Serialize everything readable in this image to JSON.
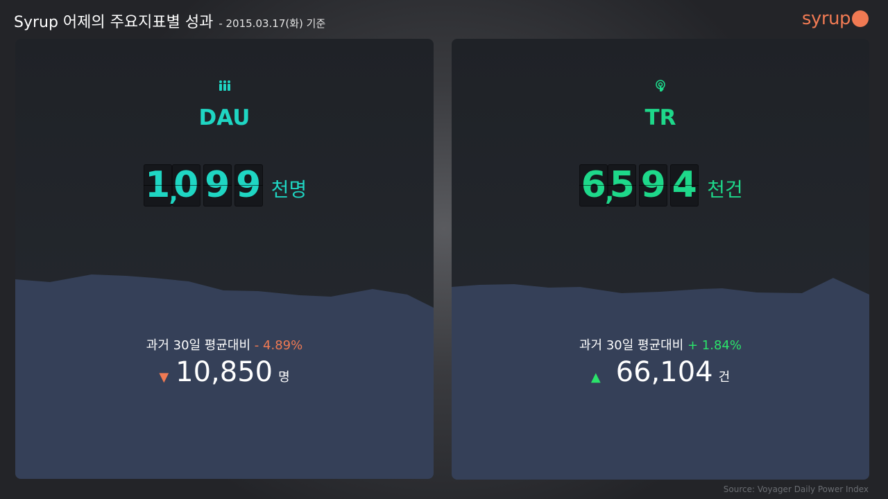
{
  "header": {
    "title": "Syrup 어제의 주요지표별 성과",
    "date": "- 2015.03.17(화) 기준"
  },
  "logo": {
    "text": "syrup",
    "accent": "#f07a53"
  },
  "panels": {
    "dau": {
      "icon": "people-icon",
      "name": "DAU",
      "digits": [
        "1",
        "0",
        "9",
        "9"
      ],
      "comma": ",",
      "unit": "천명",
      "compare_label": "과거 30일 평균대비",
      "change": "- 4.89%",
      "change_direction": "down",
      "arrow": "▼",
      "value": "10,850",
      "value_unit": "명",
      "accent": "#1fd6c3"
    },
    "tr": {
      "icon": "touch-icon",
      "name": "TR",
      "digits": [
        "6",
        "5",
        "9",
        "4"
      ],
      "comma": ",",
      "unit": "천건",
      "compare_label": "과거 30일 평균대비",
      "change": "+ 1.84%",
      "change_direction": "up",
      "arrow": "▲",
      "value": "66,104",
      "value_unit": "건",
      "accent": "#1ed88a"
    }
  },
  "colors": {
    "area_fill": "#354058",
    "down": "#f07a53",
    "up": "#2be36a"
  },
  "source": "Source: Voyager Daily Power Index"
}
